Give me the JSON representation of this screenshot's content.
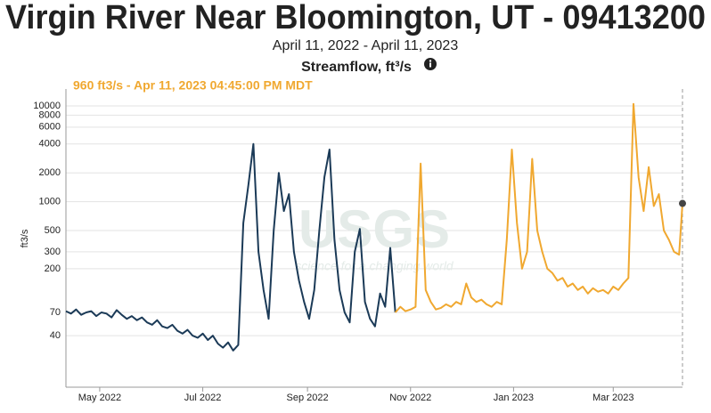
{
  "chart_data": {
    "type": "line",
    "title": "Virgin River Near Bloomington, UT - 09413200",
    "subtitle": "April 11, 2022 - April 11, 2023",
    "chart_label": "Streamflow, ft³/s",
    "annotation": "960 ft3/s - Apr 11, 2023 04:45:00 PM MDT",
    "y_label": "ft3/s",
    "watermark": "USGS",
    "watermark_tagline": "science for a changing world",
    "log_y": true,
    "grid": true,
    "xlim": [
      0,
      365
    ],
    "xticks": [
      {
        "value": 20,
        "label": "May 2022"
      },
      {
        "value": 81,
        "label": "Jul 2022"
      },
      {
        "value": 143,
        "label": "Sep 2022"
      },
      {
        "value": 204,
        "label": "Nov 2022"
      },
      {
        "value": 265,
        "label": "Jan 2023"
      },
      {
        "value": 324,
        "label": "Mar 2023"
      }
    ],
    "ylim": [
      11.6,
      15000
    ],
    "yticks": [
      40,
      70,
      200,
      300,
      500,
      1000,
      2000,
      4000,
      6000,
      8000,
      10000
    ],
    "series": [
      {
        "color": "#1b3a57",
        "x": [
          0,
          3,
          6,
          9,
          12,
          15,
          18,
          21,
          24,
          27,
          30,
          33,
          36,
          39,
          42,
          45,
          48,
          51,
          54,
          57,
          60,
          63,
          66,
          69,
          72,
          75,
          78,
          81,
          84,
          87,
          90,
          93,
          96,
          99,
          102,
          105,
          108,
          111,
          114,
          117,
          120,
          123,
          126,
          129,
          132,
          135,
          138,
          141,
          144,
          147,
          150,
          153,
          156,
          159,
          162,
          165,
          168,
          171,
          174,
          177,
          180,
          183,
          186,
          189,
          192,
          195
        ],
        "values": [
          72,
          68,
          75,
          66,
          70,
          72,
          64,
          70,
          68,
          62,
          74,
          66,
          60,
          64,
          58,
          62,
          55,
          52,
          58,
          50,
          48,
          52,
          45,
          42,
          46,
          40,
          38,
          42,
          36,
          40,
          33,
          30,
          34,
          28,
          32,
          600,
          1500,
          4000,
          300,
          120,
          60,
          500,
          2000,
          800,
          1200,
          300,
          150,
          90,
          60,
          120,
          500,
          1800,
          3500,
          400,
          120,
          70,
          55,
          300,
          520,
          90,
          60,
          50,
          110,
          80,
          330,
          70
        ]
      },
      {
        "color": "#f0a830",
        "x": [
          195,
          198,
          201,
          204,
          207,
          210,
          213,
          216,
          219,
          222,
          225,
          228,
          231,
          234,
          237,
          240,
          243,
          246,
          249,
          252,
          255,
          258,
          261,
          264,
          267,
          270,
          273,
          276,
          279,
          282,
          285,
          288,
          291,
          294,
          297,
          300,
          303,
          306,
          309,
          312,
          315,
          318,
          321,
          324,
          327,
          330,
          333,
          336,
          339,
          342,
          345,
          348,
          351,
          354,
          357,
          360,
          363,
          365
        ],
        "values": [
          70,
          80,
          72,
          75,
          80,
          2500,
          120,
          90,
          75,
          78,
          85,
          80,
          90,
          85,
          140,
          100,
          90,
          95,
          85,
          80,
          90,
          85,
          400,
          3500,
          600,
          200,
          300,
          2800,
          500,
          300,
          200,
          180,
          150,
          160,
          130,
          140,
          120,
          130,
          110,
          125,
          115,
          120,
          110,
          130,
          120,
          140,
          160,
          10500,
          1800,
          800,
          2300,
          900,
          1200,
          500,
          400,
          300,
          280,
          960
        ]
      }
    ]
  }
}
